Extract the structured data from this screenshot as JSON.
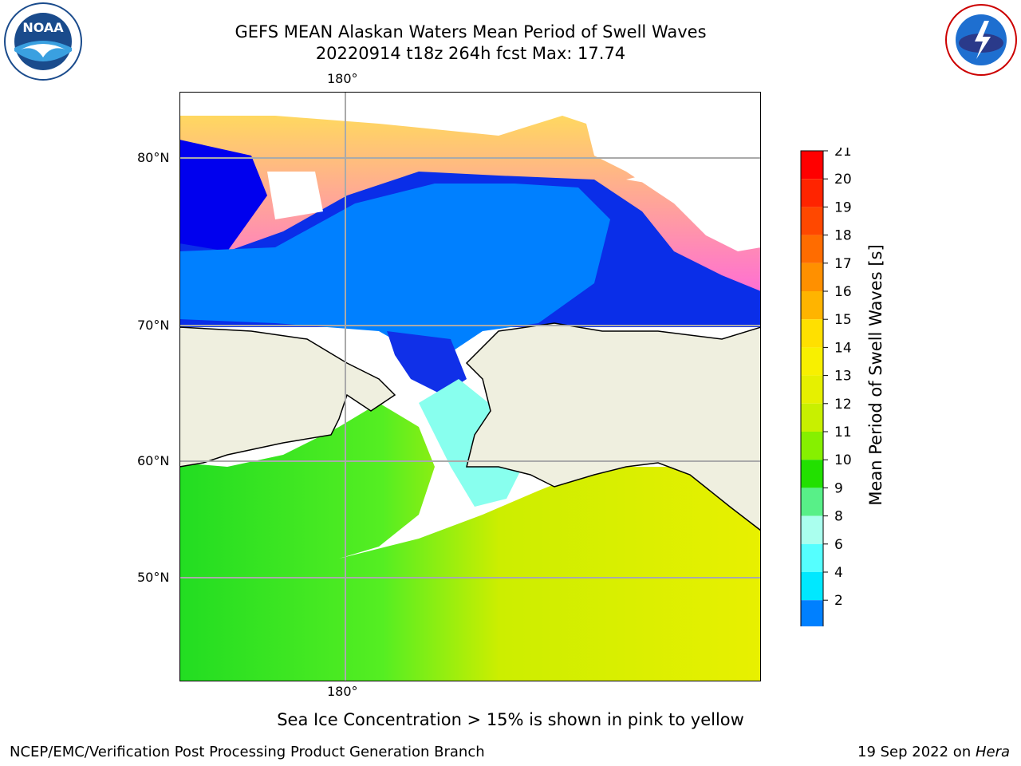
{
  "title": {
    "line1": "GEFS MEAN Alaskan Waters Mean Period of Swell Waves",
    "line2": "20220914 t18z 264h fcst   Max: 17.74"
  },
  "map": {
    "lon_label_top": "180°",
    "lon_label_bottom": "180°",
    "lat_labels": [
      "80°N",
      "70°N",
      "60°N",
      "50°N"
    ]
  },
  "colorbar": {
    "label": "Mean Period of Swell Waves [s]",
    "ticks": [
      "21",
      "20",
      "19",
      "18",
      "17",
      "16",
      "15",
      "14",
      "13",
      "12",
      "11",
      "10",
      "9",
      "8",
      "6",
      "4",
      "2"
    ],
    "colors": [
      "#ff0000",
      "#ff2400",
      "#ff4800",
      "#ff6c00",
      "#ff9000",
      "#ffb400",
      "#ffe000",
      "#f8f000",
      "#e6f000",
      "#c8f000",
      "#86f000",
      "#22e000",
      "#58f088",
      "#aaffee",
      "#55ffff",
      "#00e8ff",
      "#0080ff"
    ],
    "extend_color": "#0000ee"
  },
  "caption": "Sea Ice Concentration > 15% is shown in pink to yellow",
  "credit": "NCEP/EMC/Verification Post Processing Product Generation Branch",
  "date_prefix": "19 Sep 2022 on ",
  "date_host": "Hera",
  "logos": {
    "left": "NOAA",
    "right": "NATIONAL WEATHER SERVICE"
  }
}
